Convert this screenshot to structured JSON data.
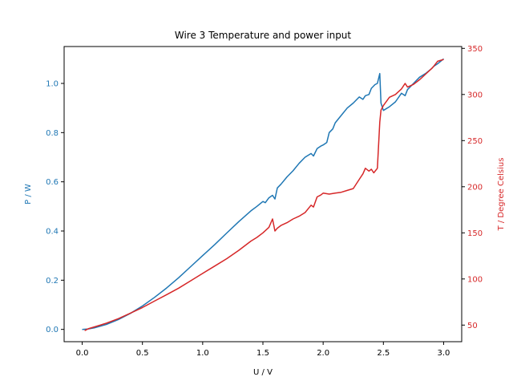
{
  "chart_data": {
    "type": "line",
    "title": "Wire 3 Temperature and power input",
    "xlabel": "U / V",
    "ylabel_left": "P / W",
    "ylabel_right": "T / Degree Celsius",
    "xlim": [
      -0.15,
      3.15
    ],
    "ylim_left": [
      -0.05,
      1.15
    ],
    "ylim_right": [
      32,
      352
    ],
    "x_ticks": [
      0.0,
      0.5,
      1.0,
      1.5,
      2.0,
      2.5,
      3.0
    ],
    "x_tick_labels": [
      "0.0",
      "0.5",
      "1.0",
      "1.5",
      "2.0",
      "2.5",
      "3.0"
    ],
    "y_left_ticks": [
      0.0,
      0.2,
      0.4,
      0.6,
      0.8,
      1.0
    ],
    "y_left_tick_labels": [
      "0.0",
      "0.2",
      "0.4",
      "0.6",
      "0.8",
      "1.0"
    ],
    "y_right_ticks": [
      50,
      100,
      150,
      200,
      250,
      300,
      350
    ],
    "y_right_tick_labels": [
      "50",
      "100",
      "150",
      "200",
      "250",
      "300",
      "350"
    ],
    "grid": false,
    "colors": {
      "left": "#1f77b4",
      "right": "#d62728",
      "axis": "#000000"
    },
    "series": [
      {
        "axis": "left",
        "color": "#1f77b4",
        "x": [
          0.0,
          0.05,
          0.1,
          0.2,
          0.3,
          0.4,
          0.5,
          0.6,
          0.7,
          0.8,
          0.9,
          1.0,
          1.1,
          1.2,
          1.3,
          1.4,
          1.45,
          1.5,
          1.52,
          1.55,
          1.58,
          1.6,
          1.62,
          1.65,
          1.7,
          1.75,
          1.8,
          1.85,
          1.9,
          1.92,
          1.95,
          1.98,
          2.0,
          2.03,
          2.05,
          2.08,
          2.1,
          2.15,
          2.2,
          2.25,
          2.3,
          2.33,
          2.35,
          2.38,
          2.4,
          2.43,
          2.45,
          2.47,
          2.48,
          2.5,
          2.55,
          2.6,
          2.65,
          2.68,
          2.7,
          2.75,
          2.8,
          2.85,
          2.9,
          2.92,
          2.95,
          3.0
        ],
        "values": [
          0.0,
          0.002,
          0.006,
          0.02,
          0.04,
          0.065,
          0.095,
          0.13,
          0.168,
          0.21,
          0.255,
          0.3,
          0.345,
          0.392,
          0.438,
          0.482,
          0.5,
          0.52,
          0.515,
          0.535,
          0.545,
          0.53,
          0.575,
          0.59,
          0.62,
          0.645,
          0.675,
          0.7,
          0.715,
          0.705,
          0.735,
          0.745,
          0.75,
          0.76,
          0.8,
          0.815,
          0.84,
          0.87,
          0.9,
          0.92,
          0.945,
          0.935,
          0.95,
          0.955,
          0.98,
          0.995,
          1.0,
          1.04,
          0.92,
          0.89,
          0.905,
          0.925,
          0.96,
          0.95,
          0.975,
          1.0,
          1.025,
          1.04,
          1.06,
          1.07,
          1.08,
          1.1
        ]
      },
      {
        "axis": "right",
        "color": "#d62728",
        "x": [
          0.02,
          0.05,
          0.1,
          0.2,
          0.3,
          0.4,
          0.5,
          0.6,
          0.7,
          0.8,
          0.9,
          1.0,
          1.1,
          1.2,
          1.3,
          1.4,
          1.45,
          1.5,
          1.55,
          1.58,
          1.6,
          1.62,
          1.65,
          1.7,
          1.75,
          1.8,
          1.85,
          1.9,
          1.92,
          1.95,
          1.98,
          2.0,
          2.05,
          2.1,
          2.15,
          2.2,
          2.25,
          2.3,
          2.33,
          2.35,
          2.38,
          2.4,
          2.42,
          2.45,
          2.47,
          2.48,
          2.5,
          2.55,
          2.6,
          2.65,
          2.68,
          2.7,
          2.75,
          2.8,
          2.85,
          2.9,
          2.92,
          2.95,
          3.0
        ],
        "values": [
          44,
          46,
          48,
          52,
          57,
          63,
          69,
          76,
          83,
          90,
          98,
          106,
          114,
          122,
          131,
          141,
          145,
          150,
          156,
          165,
          152,
          155,
          158,
          161,
          165,
          168,
          172,
          180,
          178,
          189,
          191,
          193,
          192,
          193,
          194,
          196,
          198,
          208,
          214,
          220,
          217,
          219,
          215,
          220,
          270,
          283,
          288,
          297,
          300,
          306,
          312,
          308,
          311,
          316,
          322,
          328,
          331,
          336,
          338
        ]
      }
    ]
  }
}
